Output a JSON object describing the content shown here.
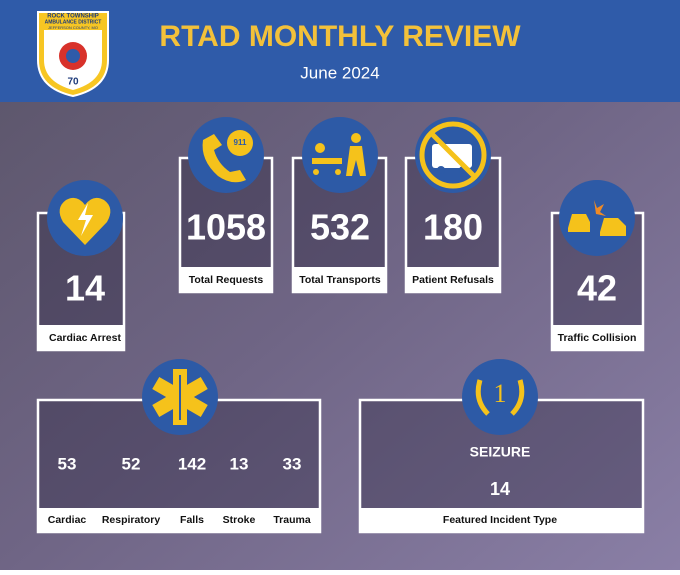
{
  "header": {
    "logo": {
      "name": "ROCK TOWNSHIP",
      "subname": "AMBULANCE DISTRICT",
      "county": "JEFFERSON COUNTY, MO",
      "years": "70"
    },
    "title": "RTAD MONTHLY REVIEW",
    "subtitle": "June 2024"
  },
  "cards": [
    {
      "value": 14,
      "label": "Cardiac Arrest"
    },
    {
      "value": 1058,
      "label": "Total Requests"
    },
    {
      "value": 532,
      "label": "Total Transports"
    },
    {
      "value": 180,
      "label": "Patient Refusals"
    },
    {
      "value": 42,
      "label": "Traffic Collision"
    }
  ],
  "breakdown": {
    "items": [
      {
        "value": 53,
        "label": "Cardiac"
      },
      {
        "value": 52,
        "label": "Respiratory"
      },
      {
        "value": 142,
        "label": "Falls"
      },
      {
        "value": 13,
        "label": "Stroke"
      },
      {
        "value": 33,
        "label": "Trauma"
      }
    ]
  },
  "featured": {
    "name": "SEIZURE",
    "value": 14,
    "label": "Featured Incident Type",
    "icon_text": "1"
  }
}
